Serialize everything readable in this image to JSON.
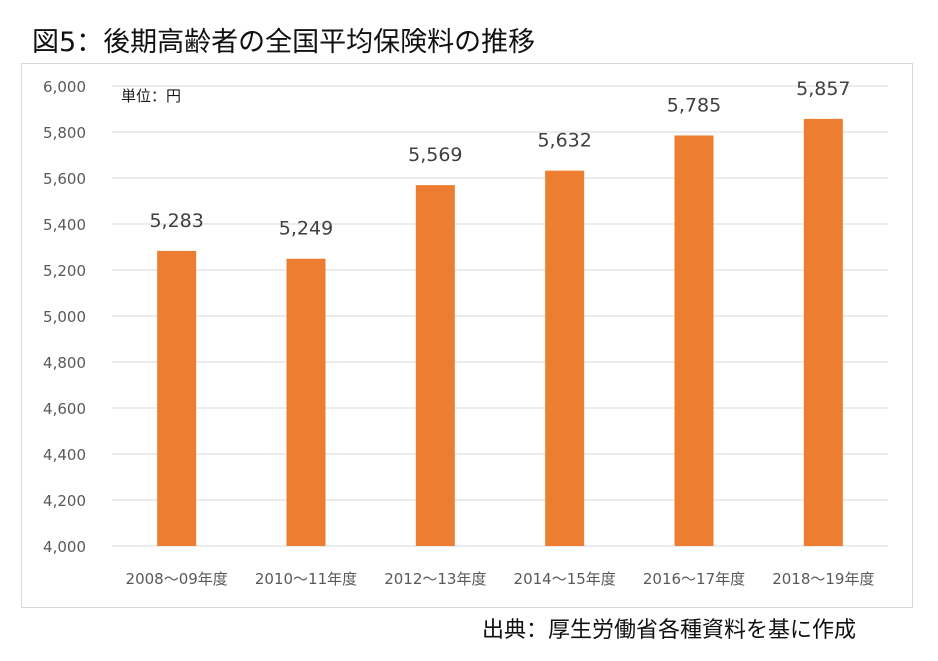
{
  "figure": {
    "title": "図5：後期高齢者の全国平均保険料の推移",
    "source": "出典：厚生労働省各種資料を基に作成"
  },
  "chart_data": {
    "type": "bar",
    "title": "",
    "unit_label": "単位：円",
    "xlabel": "",
    "ylabel": "",
    "categories": [
      "2008～09年度",
      "2010～11年度",
      "2012～13年度",
      "2014～15年度",
      "2016～17年度",
      "2018～19年度"
    ],
    "values": [
      5283,
      5249,
      5569,
      5632,
      5785,
      5857
    ],
    "data_labels": [
      "5,283",
      "5,249",
      "5,569",
      "5,632",
      "5,785",
      "5,857"
    ],
    "ylim": [
      4000,
      6000
    ],
    "yticks": [
      4000,
      4200,
      4400,
      4600,
      4800,
      5000,
      5200,
      5400,
      5600,
      5800,
      6000
    ],
    "ytick_labels": [
      "4,000",
      "4,200",
      "4,400",
      "4,600",
      "4,800",
      "5,000",
      "5,200",
      "5,400",
      "5,600",
      "5,800",
      "6,000"
    ],
    "grid": true,
    "legend": "none",
    "bar_color": "#ed7d31",
    "grid_color": "#d9d9d9"
  }
}
